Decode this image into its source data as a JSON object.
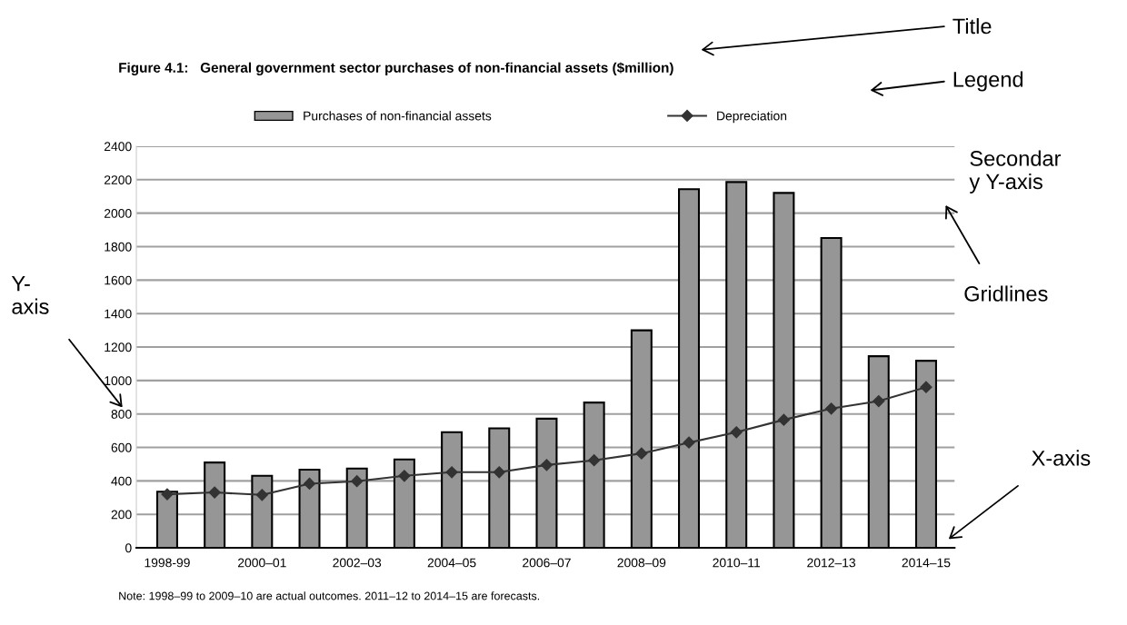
{
  "chart_data": {
    "type": "bar",
    "title": "Figure 4.1:   General government sector purchases of non-financial assets ($million)",
    "categories": [
      "1998-99",
      null,
      "2000–01",
      null,
      "2002–03",
      null,
      "2004–05",
      null,
      "2006–07",
      null,
      "2008–09",
      null,
      "2010–11",
      null,
      "2012–13",
      null,
      "2014–15"
    ],
    "series": [
      {
        "name": "Purchases of non-financial assets",
        "color": "#969696",
        "values": [
          335,
          510,
          430,
          467,
          474,
          528,
          691,
          714,
          772,
          868,
          1300,
          2143,
          2186,
          2121,
          1852,
          1145,
          1118
        ]
      },
      {
        "name": "Depreciation",
        "type": "line",
        "color": "#333333",
        "marker": "diamond",
        "line_style": "solid",
        "values": [
          320,
          331,
          316,
          383,
          398,
          430,
          452,
          452,
          495,
          523,
          564,
          629,
          691,
          765,
          832,
          877,
          960
        ]
      }
    ],
    "ylim": [
      0,
      2400
    ],
    "yticks": [
      0,
      200,
      400,
      600,
      800,
      1000,
      1200,
      1400,
      1600,
      1800,
      2000,
      2200,
      2400
    ],
    "grid": "y",
    "legend": "top",
    "annotations": [
      "Note: 1998–99 to 2009–10 are actual outcomes. 2011–12 to 2014–15 are forecasts.",
      "Title",
      "Legend",
      "Secondar\ny Y-axis",
      "Gridlines",
      "Y-\naxis",
      "X-axis"
    ]
  }
}
